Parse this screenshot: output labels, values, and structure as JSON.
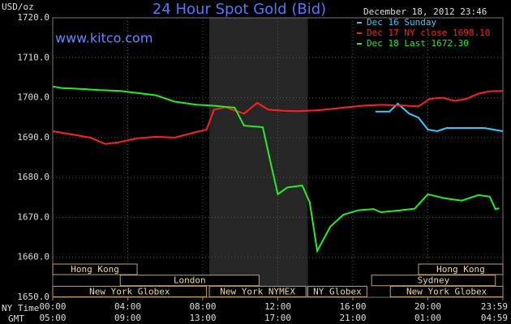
{
  "chart_data": {
    "type": "line",
    "title": "24 Hour Spot Gold (Bid)",
    "y_label": "USD/oz",
    "watermark": "www.kitco.com",
    "timestamp": "December 18, 2012 23:46",
    "x_label": "NY Time",
    "x2_label": "GMT",
    "xlim": [
      0,
      24
    ],
    "xticks": [
      {
        "value": 0,
        "label": "00:00"
      },
      {
        "value": 4,
        "label": "04:00"
      },
      {
        "value": 8,
        "label": "08:00"
      },
      {
        "value": 12,
        "label": "12:00"
      },
      {
        "value": 16,
        "label": "16:00"
      },
      {
        "value": 20,
        "label": "20:00"
      },
      {
        "value": 24,
        "label": "23:59"
      }
    ],
    "x2ticks": [
      {
        "value": 0,
        "label": "05:00"
      },
      {
        "value": 4,
        "label": "09:00"
      },
      {
        "value": 8,
        "label": "13:00"
      },
      {
        "value": 12,
        "label": "17:00"
      },
      {
        "value": 16,
        "label": "21:00"
      },
      {
        "value": 20,
        "label": "01:00"
      },
      {
        "value": 24,
        "label": "04:59"
      }
    ],
    "ylim": [
      1650,
      1720
    ],
    "yticks": [
      {
        "value": 1650,
        "label": "1650.0"
      },
      {
        "value": 1660,
        "label": "1660.0"
      },
      {
        "value": 1670,
        "label": "1670.0"
      },
      {
        "value": 1680,
        "label": "1680.0"
      },
      {
        "value": 1690,
        "label": "1690.0"
      },
      {
        "value": 1700,
        "label": "1700.0"
      },
      {
        "value": 1710,
        "label": "1710.0"
      },
      {
        "value": 1720,
        "label": "1720.0"
      }
    ],
    "grid": true,
    "highlight_x": [
      8.35,
      13.6
    ],
    "sessions": [
      {
        "label": "Hong Kong",
        "row": 0,
        "start": 0,
        "end": 4.5
      },
      {
        "label": "Hong Kong",
        "row": 0,
        "start": 19.5,
        "end": 24
      },
      {
        "label": "London",
        "row": 1,
        "start": 3.6,
        "end": 11.0
      },
      {
        "label": "Sydney",
        "row": 1,
        "start": 17.0,
        "end": 23.6
      },
      {
        "label": "New York Globex",
        "row": 2,
        "start": 0,
        "end": 8.2
      },
      {
        "label": "New York NYMEX",
        "row": 2,
        "start": 8.35,
        "end": 13.5
      },
      {
        "label": "NY Globex",
        "row": 2,
        "start": 13.6,
        "end": 16.75
      },
      {
        "label": "New York Globex",
        "row": 2,
        "start": 18.0,
        "end": 24
      }
    ],
    "series": [
      {
        "name": "Dec 16 Sunday",
        "color": "#33ccff",
        "x": [
          17.2,
          17.95,
          18.4,
          19,
          19.5,
          20,
          20.5,
          21,
          22,
          23,
          24
        ],
        "values": [
          1696.5,
          1696.5,
          1698.5,
          1696,
          1695,
          1692,
          1691.6,
          1692.4,
          1692.4,
          1692.4,
          1691.6
        ]
      },
      {
        "name": "Dec 17 NY close 1698.10",
        "color": "#ff2020",
        "x": [
          0,
          1,
          2,
          2.8,
          3.5,
          4.5,
          5.5,
          6.5,
          7.5,
          8.2,
          8.6,
          9.2,
          10.2,
          10.9,
          11.5,
          12.3,
          13,
          14,
          14.5,
          15.5,
          16.6,
          17.5,
          18.8,
          19.5,
          20.1,
          20.8,
          21.4,
          22,
          22.7,
          23.3,
          24
        ],
        "values": [
          1691.6,
          1690.8,
          1690,
          1688.4,
          1688.8,
          1689.8,
          1690.2,
          1690,
          1691.2,
          1692,
          1697,
          1697.6,
          1696,
          1698.7,
          1697,
          1696.7,
          1696.6,
          1696.8,
          1697,
          1697.5,
          1698,
          1698.2,
          1698,
          1697.8,
          1699.7,
          1700,
          1699.2,
          1699.6,
          1701,
          1701.6,
          1701.7
        ]
      },
      {
        "name": "Dec 18 Last 1672.30",
        "color": "#22ee22",
        "x": [
          0,
          0.5,
          1.5,
          2.5,
          3.6,
          4.5,
          5.5,
          6.5,
          7.7,
          8.5,
          9.7,
          10.2,
          11.2,
          11.6,
          12,
          12.5,
          13.3,
          13.7,
          14.1,
          14.8,
          15.5,
          16.3,
          17.1,
          17.5,
          18.4,
          19.3,
          20,
          20.9,
          21.8,
          22.7,
          23.3,
          23.6,
          23.8
        ],
        "values": [
          1702.8,
          1702.4,
          1702.2,
          1701.9,
          1701.7,
          1701.2,
          1700.6,
          1699,
          1698.2,
          1698,
          1697.5,
          1693,
          1692.6,
          1684,
          1675.8,
          1677.5,
          1678,
          1673.8,
          1661.6,
          1667.7,
          1670.7,
          1671.8,
          1672.1,
          1671.3,
          1671.7,
          1672.2,
          1675.8,
          1674.8,
          1674.2,
          1675.6,
          1675.2,
          1672.1,
          1672.3
        ]
      }
    ]
  }
}
